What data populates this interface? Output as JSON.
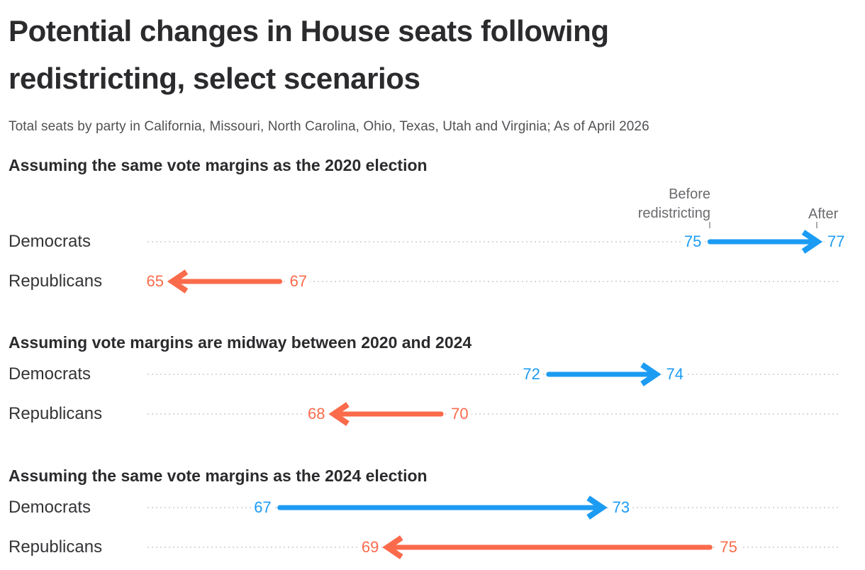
{
  "title_lines": [
    "Potential changes in House seats following",
    "redistricting, select scenarios"
  ],
  "subtitle": "Total seats by party in California, Missouri, North Carolina, Ohio, Texas, Utah and Virginia; As of April 2026",
  "axis_labels": {
    "before": "Before redistricting",
    "after": "After"
  },
  "colors": {
    "democrats": "#1c9bf3",
    "republicans": "#fa6b4c",
    "dotted_line": "#d9d9d9",
    "heading_text": "#2b2b2e",
    "gray_label": "#6b6b6f"
  },
  "chart_data": {
    "type": "arrow",
    "title": "Potential changes in House seats following redistricting, select scenarios",
    "subtitle": "Total seats by party in California, Missouri, North Carolina, Ohio, Texas, Utah and Virginia; As of April 2026",
    "unit": "House seats",
    "axis": {
      "min": 65,
      "max": 77,
      "column_labels": [
        "Before redistricting",
        "After"
      ]
    },
    "legend": "none",
    "grid": "dotted row leader lines",
    "sections": [
      {
        "heading": "Assuming the same vote margins as the 2020 election",
        "rows": [
          {
            "party": "Democrats",
            "before": 75,
            "after": 77,
            "color_key": "democrats"
          },
          {
            "party": "Republicans",
            "before": 67,
            "after": 65,
            "color_key": "republicans"
          }
        ]
      },
      {
        "heading": "Assuming vote margins are midway between 2020 and 2024",
        "rows": [
          {
            "party": "Democrats",
            "before": 72,
            "after": 74,
            "color_key": "democrats"
          },
          {
            "party": "Republicans",
            "before": 70,
            "after": 68,
            "color_key": "republicans"
          }
        ]
      },
      {
        "heading": "Assuming the same vote margins as the 2024 election",
        "rows": [
          {
            "party": "Democrats",
            "before": 67,
            "after": 73,
            "color_key": "democrats"
          },
          {
            "party": "Republicans",
            "before": 75,
            "after": 69,
            "color_key": "republicans"
          }
        ]
      }
    ]
  }
}
